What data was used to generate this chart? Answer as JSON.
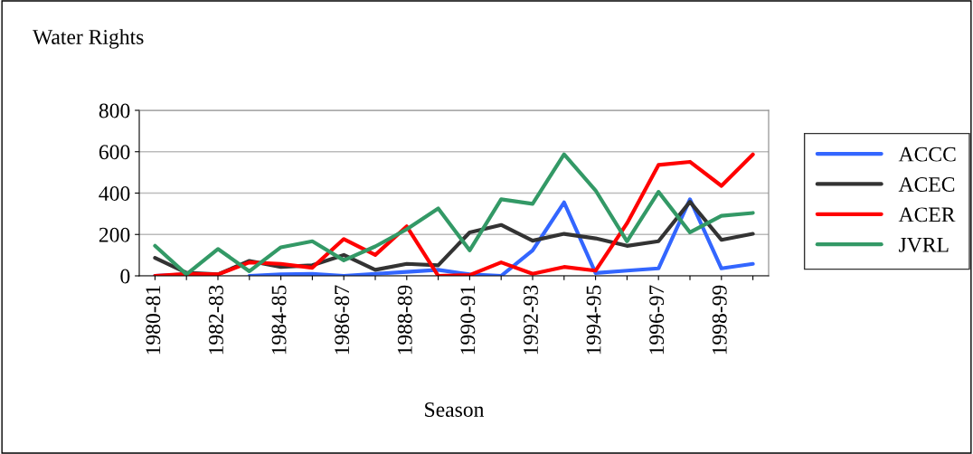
{
  "chart_data": {
    "type": "line",
    "ylabel": "Water Rights",
    "xlabel": "Season",
    "categories": [
      "1980-81",
      null,
      "1982-83",
      null,
      "1984-85",
      null,
      "1986-87",
      null,
      "1988-89",
      null,
      "1990-91",
      null,
      "1992-93",
      null,
      "1994-95",
      null,
      "1996-97",
      null,
      "1998-99",
      null
    ],
    "series": [
      {
        "name": "ACCC",
        "color": "#3366ff",
        "values": [
          0,
          7,
          null,
          0,
          7,
          10,
          0,
          10,
          19,
          29,
          7,
          0,
          123,
          355,
          14,
          25,
          36,
          370,
          36,
          58
        ]
      },
      {
        "name": "ACEC",
        "color": "#333333",
        "values": [
          87,
          15,
          7,
          72,
          43,
          51,
          101,
          29,
          58,
          51,
          210,
          246,
          170,
          203,
          181,
          145,
          167,
          358,
          174,
          203
        ]
      },
      {
        "name": "ACER",
        "color": "#ff0000",
        "values": [
          0,
          10,
          7,
          65,
          58,
          39,
          178,
          101,
          239,
          0,
          4,
          65,
          10,
          43,
          25,
          254,
          536,
          551,
          435,
          587
        ]
      },
      {
        "name": "JVRL",
        "color": "#339966",
        "values": [
          145,
          7,
          130,
          22,
          138,
          167,
          75,
          142,
          225,
          326,
          123,
          370,
          348,
          587,
          413,
          167,
          406,
          210,
          290,
          304
        ]
      }
    ],
    "ylim": [
      0,
      800
    ],
    "yticks": [
      0,
      200,
      400,
      600,
      800
    ],
    "grid": "y",
    "legend": "right",
    "marker": "none",
    "line_style": "solid"
  }
}
